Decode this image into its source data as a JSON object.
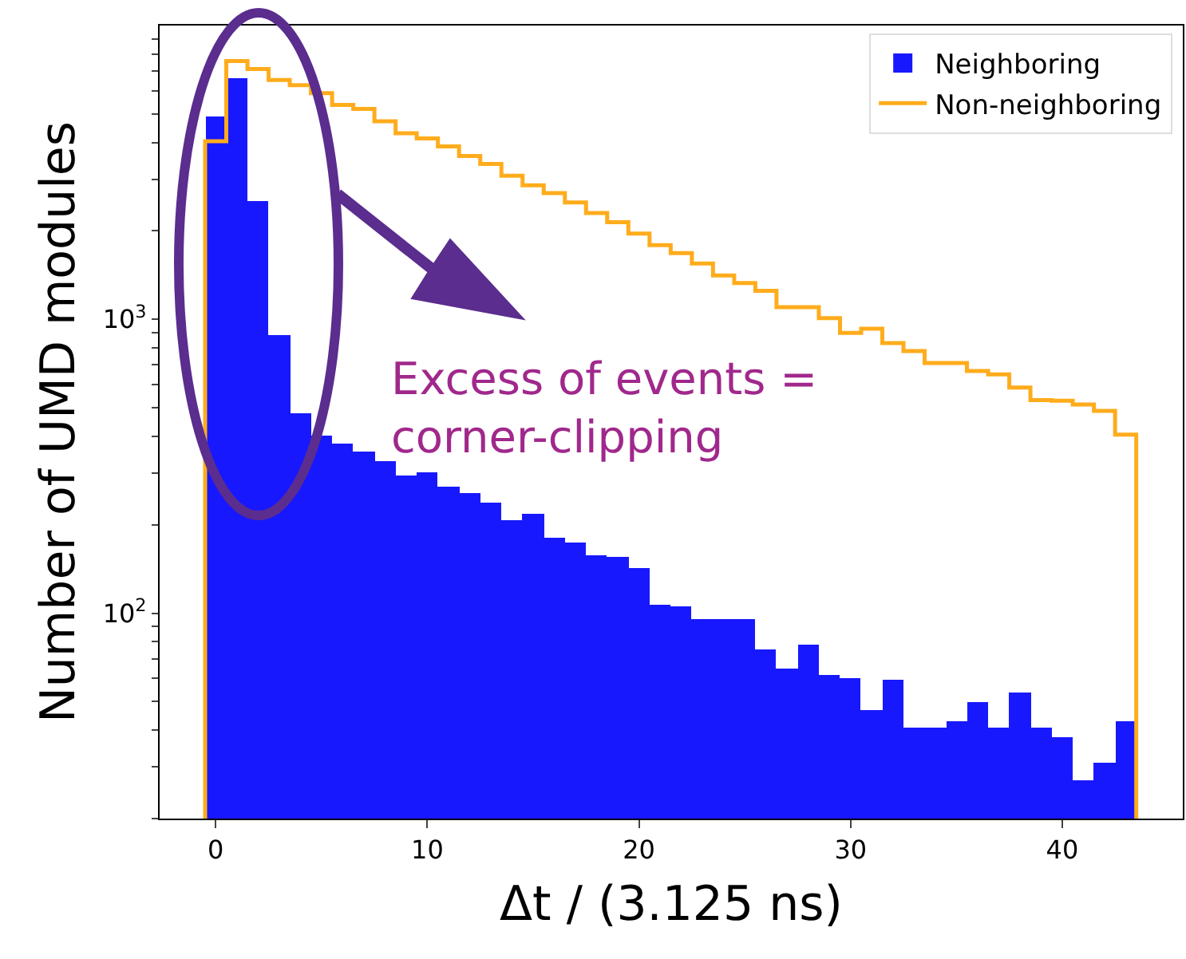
{
  "chart_data": {
    "type": "histogram",
    "xlabel": "Δt / (3.125 ns)",
    "ylabel": "Number of UMD modules",
    "bins": [
      -0.5,
      0.5,
      1.5,
      2.5,
      3.5,
      4.5,
      5.5,
      6.5,
      7.5,
      8.5,
      9.5,
      10.5,
      11.5,
      12.5,
      13.5,
      14.5,
      15.5,
      16.5,
      17.5,
      18.5,
      19.5,
      20.5,
      21.5,
      22.5,
      23.5,
      24.5,
      25.5,
      26.5,
      27.5,
      28.5,
      29.5,
      30.5,
      31.5,
      32.5,
      33.5,
      34.5,
      35.5,
      36.5,
      37.5,
      38.5,
      39.5,
      40.5,
      41.5,
      42.5,
      43.5
    ],
    "series": [
      {
        "name": "Neighboring",
        "color": "#1818ff",
        "values": [
          4920,
          6590,
          2535,
          886,
          482,
          403,
          378,
          356,
          330,
          294,
          301,
          271,
          255,
          237,
          207,
          218,
          180,
          174,
          158,
          156,
          142,
          107,
          105,
          96,
          95,
          95,
          75,
          65,
          78,
          62,
          60,
          47,
          59,
          41,
          41,
          43,
          50,
          41,
          54,
          41,
          38,
          27,
          31,
          43
        ]
      },
      {
        "name": "Non-neighboring",
        "type": "step",
        "color": "#ffac1c",
        "x": [
          -0.5,
          -0.5,
          0,
          1,
          2,
          3,
          4,
          5,
          6,
          7,
          8,
          9,
          10,
          11,
          12,
          13,
          14,
          15,
          16,
          17,
          18,
          19,
          20,
          21,
          22,
          23,
          24,
          25,
          26,
          27,
          28,
          29,
          30,
          31,
          32,
          33,
          34,
          35,
          36,
          37,
          38,
          39,
          40,
          41,
          42,
          43,
          43.5,
          43.5
        ],
        "values": [
          20,
          4040,
          4040,
          7570,
          7110,
          6530,
          6270,
          5890,
          5370,
          5200,
          4720,
          4300,
          4130,
          3880,
          3600,
          3380,
          3080,
          2860,
          2690,
          2500,
          2300,
          2140,
          1960,
          1790,
          1680,
          1550,
          1410,
          1330,
          1250,
          1100,
          1100,
          1010,
          900,
          930,
          830,
          780,
          710,
          710,
          667,
          650,
          586,
          531,
          529,
          513,
          488,
          405,
          405,
          20
        ]
      }
    ],
    "xlim": [
      -2.65,
      45.7
    ],
    "xticks": [
      0,
      10,
      20,
      30,
      40
    ],
    "ylim": [
      20,
      10000
    ],
    "log": true,
    "yticks": [
      {
        "value": 20,
        "label": null
      },
      {
        "value": 30,
        "label": null
      },
      {
        "value": 40,
        "label": null
      },
      {
        "value": 50,
        "label": null
      },
      {
        "value": 60,
        "label": null
      },
      {
        "value": 70,
        "label": null
      },
      {
        "value": 80,
        "label": null
      },
      {
        "value": 90,
        "label": null
      },
      {
        "value": 100,
        "label": "10$^{2}$"
      },
      {
        "value": 200,
        "label": null
      },
      {
        "value": 300,
        "label": null
      },
      {
        "value": 400,
        "label": null
      },
      {
        "value": 500,
        "label": null
      },
      {
        "value": 600,
        "label": null
      },
      {
        "value": 700,
        "label": null
      },
      {
        "value": 800,
        "label": null
      },
      {
        "value": 900,
        "label": null
      },
      {
        "value": 1000,
        "label": "10$^{3}$"
      },
      {
        "value": 2000,
        "label": null
      },
      {
        "value": 3000,
        "label": null
      },
      {
        "value": 4000,
        "label": null
      },
      {
        "value": 5000,
        "label": null
      },
      {
        "value": 6000,
        "label": null
      },
      {
        "value": 7000,
        "label": null
      },
      {
        "value": 8000,
        "label": null
      },
      {
        "value": 9000,
        "label": null
      }
    ],
    "legend": "top right",
    "annotations": [
      "Excess of events =\ncorner-clipping"
    ]
  }
}
